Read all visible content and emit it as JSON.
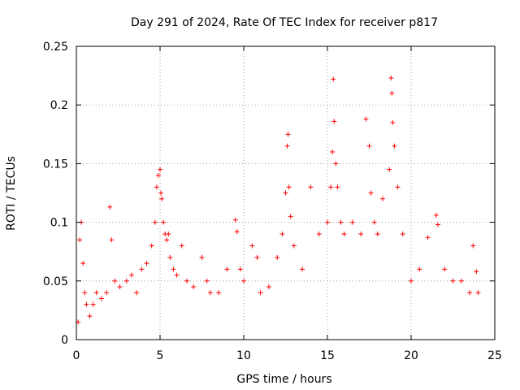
{
  "chart_data": {
    "type": "scatter",
    "title": "Day 291 of 2024, Rate Of TEC Index for receiver p817",
    "xlabel": "GPS time / hours",
    "ylabel": "ROTI / TECUs",
    "xlim": [
      0,
      25
    ],
    "ylim": [
      0,
      0.25
    ],
    "xticks": [
      0,
      5,
      10,
      15,
      20,
      25
    ],
    "xtick_labels": [
      "0",
      "5",
      "10",
      "15",
      "20",
      "25"
    ],
    "yticks": [
      0,
      0.05,
      0.1,
      0.15,
      0.2,
      0.25
    ],
    "ytick_labels": [
      "0",
      "0.05",
      "0.1",
      "0.15",
      "0.2",
      "0.25"
    ],
    "grid": true,
    "marker": "+",
    "color": "#ff0000",
    "series": [
      {
        "name": "ROTI",
        "x": [
          0.1,
          0.2,
          0.3,
          0.4,
          0.5,
          0.6,
          0.8,
          1.0,
          1.2,
          1.5,
          1.8,
          2.0,
          2.1,
          2.3,
          2.6,
          3.0,
          3.3,
          3.6,
          3.9,
          4.2,
          4.5,
          4.7,
          4.8,
          4.9,
          5.0,
          5.05,
          5.1,
          5.2,
          5.3,
          5.4,
          5.5,
          5.6,
          5.8,
          6.0,
          6.3,
          6.6,
          7.0,
          7.5,
          7.8,
          8.0,
          8.5,
          9.0,
          9.5,
          9.6,
          9.8,
          10.0,
          10.5,
          10.8,
          11.0,
          11.5,
          12.0,
          12.3,
          12.5,
          12.6,
          12.65,
          12.7,
          12.8,
          13.0,
          13.5,
          14.0,
          14.5,
          15.0,
          15.2,
          15.3,
          15.35,
          15.4,
          15.5,
          15.6,
          15.8,
          16.0,
          16.5,
          17.0,
          17.3,
          17.5,
          17.6,
          17.8,
          18.0,
          18.3,
          18.7,
          18.8,
          18.85,
          18.9,
          19.0,
          19.2,
          19.5,
          20.0,
          20.5,
          21.0,
          21.5,
          21.6,
          22.0,
          22.5,
          23.0,
          23.5,
          23.7,
          23.9,
          24.0
        ],
        "y": [
          0.015,
          0.085,
          0.1,
          0.065,
          0.04,
          0.03,
          0.02,
          0.03,
          0.04,
          0.035,
          0.04,
          0.113,
          0.085,
          0.05,
          0.045,
          0.05,
          0.055,
          0.04,
          0.06,
          0.065,
          0.08,
          0.1,
          0.13,
          0.14,
          0.145,
          0.125,
          0.12,
          0.1,
          0.09,
          0.085,
          0.09,
          0.07,
          0.06,
          0.055,
          0.08,
          0.05,
          0.045,
          0.07,
          0.05,
          0.04,
          0.04,
          0.06,
          0.102,
          0.092,
          0.06,
          0.05,
          0.08,
          0.07,
          0.04,
          0.045,
          0.07,
          0.09,
          0.125,
          0.165,
          0.175,
          0.13,
          0.105,
          0.08,
          0.06,
          0.13,
          0.09,
          0.1,
          0.13,
          0.16,
          0.222,
          0.186,
          0.15,
          0.13,
          0.1,
          0.09,
          0.1,
          0.09,
          0.188,
          0.165,
          0.125,
          0.1,
          0.09,
          0.12,
          0.145,
          0.223,
          0.21,
          0.185,
          0.165,
          0.13,
          0.09,
          0.05,
          0.06,
          0.087,
          0.106,
          0.098,
          0.06,
          0.05,
          0.05,
          0.04,
          0.08,
          0.058,
          0.04
        ]
      }
    ]
  }
}
